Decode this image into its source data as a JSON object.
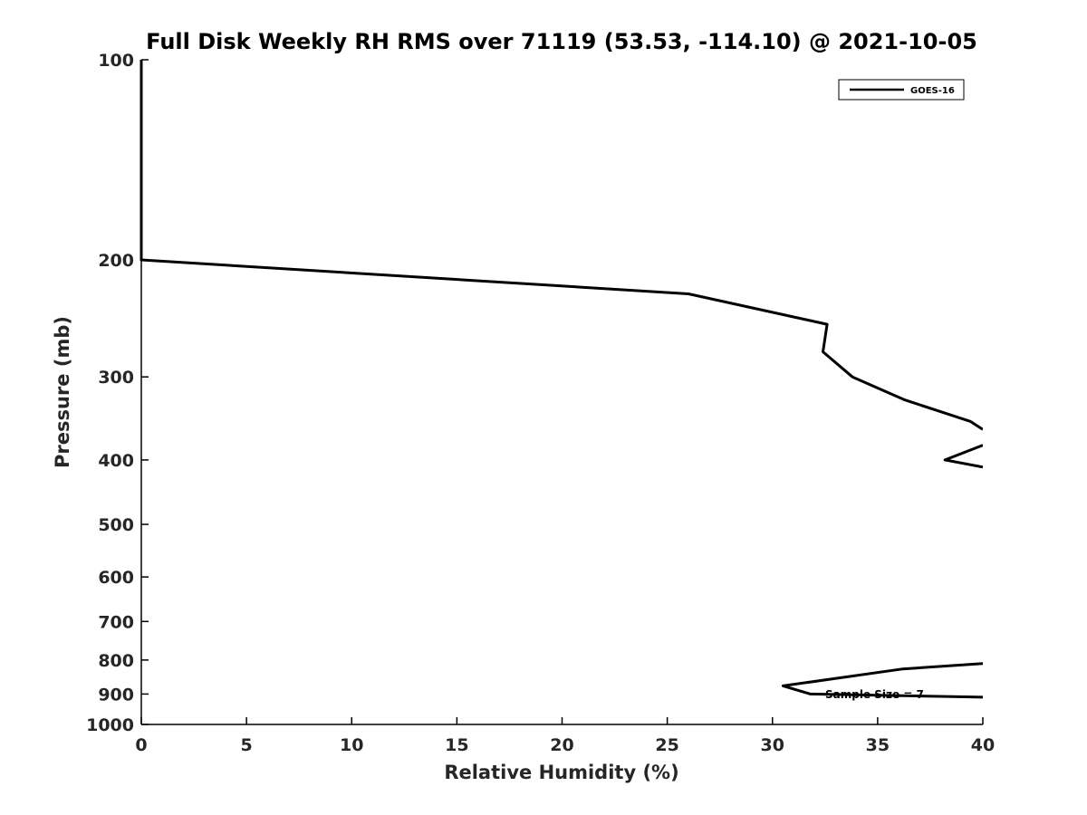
{
  "chart_data": {
    "type": "line",
    "title": "Full Disk Weekly RH RMS over 71119 (53.53, -114.10) @ 2021-10-05",
    "xlabel": "Relative Humidity (%)",
    "ylabel": "Pressure (mb)",
    "xlim": [
      0,
      40
    ],
    "ylim": [
      100,
      1000
    ],
    "yscale": "log",
    "y_reversed": true,
    "grid": false,
    "x_ticks": [
      "0",
      "5",
      "10",
      "15",
      "20",
      "25",
      "30",
      "35",
      "40"
    ],
    "y_ticks": [
      "100",
      "200",
      "300",
      "400",
      "500",
      "600",
      "700",
      "800",
      "900",
      "1000"
    ],
    "legend": {
      "position": "top-right",
      "entries": [
        "GOES-16"
      ]
    },
    "annotation": "Sample Size = 7",
    "series": [
      {
        "name": "GOES-16",
        "color": "#000000",
        "segments": [
          [
            [
              0.0,
              100
            ],
            [
              0.0,
              150
            ],
            [
              0.0,
              200
            ],
            [
              26.0,
              225
            ],
            [
              32.6,
              250
            ],
            [
              32.4,
              275
            ],
            [
              33.8,
              300
            ],
            [
              36.3,
              325
            ],
            [
              39.4,
              350
            ],
            [
              40.0,
              360
            ]
          ],
          [
            [
              40.0,
              380
            ],
            [
              38.2,
              400
            ],
            [
              40.0,
              410
            ]
          ],
          [
            [
              40.0,
              810
            ],
            [
              36.2,
              825
            ],
            [
              30.5,
              875
            ],
            [
              31.8,
              900
            ],
            [
              40.0,
              910
            ]
          ]
        ]
      }
    ]
  }
}
